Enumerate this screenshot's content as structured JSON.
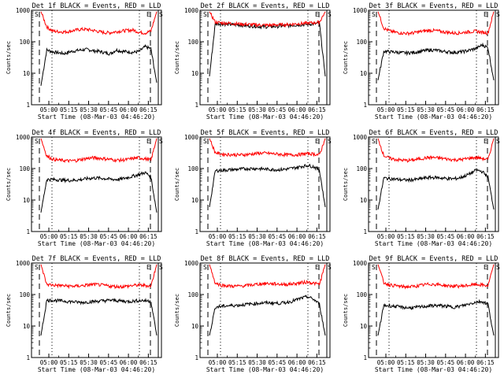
{
  "colors": {
    "events": "#000000",
    "lld": "#ff0000",
    "background": "#ffffff"
  },
  "chart_data": [
    {
      "type": "line",
      "title": "Det 1f BLACK = Events, RED = LLD",
      "xlabel": "Start Time (08-Mar-03 04:46:20)",
      "ylabel": "Counts/sec",
      "y_scale": "log",
      "ylim": [
        1,
        1000
      ],
      "yticks": [
        "1",
        "10",
        "100",
        "1000"
      ],
      "xticks": [
        "05:00",
        "05:15",
        "05:30",
        "05:45",
        "06:00",
        "06:15"
      ],
      "marker_labels": [
        "S",
        "E",
        "S"
      ],
      "series": [
        {
          "color": "#000000",
          "values": [
            4,
            55,
            48,
            45,
            42,
            48,
            52,
            55,
            57,
            52,
            50,
            45,
            42,
            55,
            50,
            48,
            46,
            50,
            70,
            60,
            5
          ]
        },
        {
          "color": "#ff0000",
          "values": [
            900,
            300,
            220,
            210,
            205,
            215,
            235,
            250,
            245,
            230,
            210,
            195,
            195,
            210,
            220,
            230,
            235,
            200,
            190,
            220,
            900
          ]
        }
      ]
    },
    {
      "type": "line",
      "title": "Det 2f BLACK = Events, RED = LLD",
      "xlabel": "Start Time (08-Mar-03 04:46:20)",
      "ylabel": "Counts/sec",
      "y_scale": "log",
      "ylim": [
        1,
        1000
      ],
      "yticks": [
        "1",
        "10",
        "100",
        "1000"
      ],
      "xticks": [
        "05:00",
        "05:15",
        "05:30",
        "05:45",
        "06:00",
        "06:15"
      ],
      "marker_labels": [
        "S",
        "E",
        "S"
      ],
      "series": [
        {
          "color": "#000000",
          "values": [
            8,
            380,
            370,
            360,
            350,
            340,
            330,
            320,
            310,
            300,
            300,
            305,
            310,
            320,
            330,
            340,
            350,
            360,
            370,
            380,
            8
          ]
        },
        {
          "color": "#ff0000",
          "values": [
            900,
            420,
            400,
            390,
            380,
            370,
            360,
            350,
            345,
            340,
            335,
            340,
            345,
            350,
            360,
            370,
            380,
            390,
            400,
            420,
            900
          ]
        }
      ]
    },
    {
      "type": "line",
      "title": "Det 3f BLACK = Events, RED = LLD",
      "xlabel": "Start Time (08-Mar-03 04:46:20)",
      "ylabel": "Counts/sec",
      "y_scale": "log",
      "ylim": [
        1,
        1000
      ],
      "yticks": [
        "1",
        "10",
        "100",
        "1000"
      ],
      "xticks": [
        "05:00",
        "05:15",
        "05:30",
        "05:45",
        "06:00",
        "06:15"
      ],
      "marker_labels": [
        "S",
        "E",
        "S"
      ],
      "series": [
        {
          "color": "#000000",
          "values": [
            6,
            50,
            48,
            47,
            45,
            44,
            46,
            48,
            52,
            55,
            54,
            50,
            48,
            46,
            47,
            50,
            55,
            62,
            80,
            65,
            6
          ]
        },
        {
          "color": "#ff0000",
          "values": [
            900,
            270,
            220,
            200,
            190,
            185,
            190,
            205,
            220,
            230,
            225,
            210,
            200,
            190,
            190,
            200,
            210,
            215,
            200,
            190,
            900
          ]
        }
      ]
    },
    {
      "type": "line",
      "title": "Det 4f BLACK = Events, RED = LLD",
      "xlabel": "Start Time (08-Mar-03 04:46:20)",
      "ylabel": "Counts/sec",
      "y_scale": "log",
      "ylim": [
        1,
        1000
      ],
      "yticks": [
        "1",
        "10",
        "100",
        "1000"
      ],
      "xticks": [
        "05:00",
        "05:15",
        "05:30",
        "05:45",
        "06:00",
        "06:15"
      ],
      "marker_labels": [
        "S",
        "E",
        "S"
      ],
      "series": [
        {
          "color": "#000000",
          "values": [
            4,
            45,
            45,
            44,
            43,
            42,
            43,
            45,
            48,
            50,
            50,
            48,
            46,
            45,
            47,
            52,
            58,
            65,
            75,
            55,
            4
          ]
        },
        {
          "color": "#ff0000",
          "values": [
            900,
            250,
            200,
            185,
            180,
            175,
            180,
            195,
            210,
            220,
            215,
            205,
            195,
            185,
            185,
            195,
            210,
            220,
            205,
            185,
            900
          ]
        }
      ]
    },
    {
      "type": "line",
      "title": "Det 5f BLACK = Events, RED = LLD",
      "xlabel": "Start Time (08-Mar-03 04:46:20)",
      "ylabel": "Counts/sec",
      "y_scale": "log",
      "ylim": [
        1,
        1000
      ],
      "yticks": [
        "1",
        "10",
        "100",
        "1000"
      ],
      "xticks": [
        "05:00",
        "05:15",
        "05:30",
        "05:45",
        "06:00",
        "06:15"
      ],
      "marker_labels": [
        "S",
        "E",
        "S"
      ],
      "series": [
        {
          "color": "#000000",
          "values": [
            6,
            85,
            88,
            90,
            92,
            95,
            98,
            100,
            100,
            98,
            95,
            93,
            92,
            95,
            100,
            108,
            118,
            125,
            115,
            90,
            6
          ]
        },
        {
          "color": "#ff0000",
          "values": [
            900,
            320,
            290,
            280,
            275,
            270,
            275,
            285,
            300,
            310,
            305,
            295,
            285,
            275,
            270,
            275,
            285,
            300,
            290,
            270,
            900
          ]
        }
      ]
    },
    {
      "type": "line",
      "title": "Det 6f BLACK = Events, RED = LLD",
      "xlabel": "Start Time (08-Mar-03 04:46:20)",
      "ylabel": "Counts/sec",
      "y_scale": "log",
      "ylim": [
        1,
        1000
      ],
      "yticks": [
        "1",
        "10",
        "100",
        "1000"
      ],
      "xticks": [
        "05:00",
        "05:15",
        "05:30",
        "05:45",
        "06:00",
        "06:15"
      ],
      "marker_labels": [
        "S",
        "E",
        "S"
      ],
      "series": [
        {
          "color": "#000000",
          "values": [
            5,
            50,
            48,
            46,
            44,
            43,
            44,
            46,
            50,
            52,
            52,
            50,
            48,
            47,
            50,
            58,
            70,
            90,
            80,
            55,
            5
          ]
        },
        {
          "color": "#ff0000",
          "values": [
            900,
            260,
            210,
            195,
            185,
            180,
            185,
            200,
            215,
            225,
            220,
            210,
            200,
            190,
            190,
            200,
            215,
            225,
            210,
            190,
            900
          ]
        }
      ]
    },
    {
      "type": "line",
      "title": "Det 7f BLACK = Events, RED = LLD",
      "xlabel": "Start Time (08-Mar-03 04:46:20)",
      "ylabel": "Counts/sec",
      "y_scale": "log",
      "ylim": [
        1,
        1000
      ],
      "yticks": [
        "1",
        "10",
        "100",
        "1000"
      ],
      "xticks": [
        "05:00",
        "05:15",
        "05:30",
        "05:45",
        "06:00",
        "06:15"
      ],
      "marker_labels": [
        "S",
        "E",
        "S"
      ],
      "series": [
        {
          "color": "#000000",
          "values": [
            5,
            65,
            66,
            64,
            62,
            60,
            58,
            56,
            58,
            60,
            62,
            64,
            66,
            65,
            62,
            60,
            62,
            65,
            64,
            62,
            5
          ]
        },
        {
          "color": "#ff0000",
          "values": [
            900,
            210,
            200,
            195,
            190,
            185,
            185,
            190,
            200,
            210,
            205,
            195,
            185,
            180,
            180,
            185,
            195,
            200,
            195,
            185,
            900
          ]
        }
      ]
    },
    {
      "type": "line",
      "title": "Det 8f BLACK = Events, RED = LLD",
      "xlabel": "Start Time (08-Mar-03 04:46:20)",
      "ylabel": "Counts/sec",
      "y_scale": "log",
      "ylim": [
        1,
        1000
      ],
      "yticks": [
        "1",
        "10",
        "100",
        "1000"
      ],
      "xticks": [
        "05:00",
        "05:15",
        "05:30",
        "05:45",
        "06:00",
        "06:15"
      ],
      "marker_labels": [
        "S",
        "E",
        "S"
      ],
      "series": [
        {
          "color": "#000000",
          "values": [
            5,
            40,
            42,
            44,
            45,
            46,
            48,
            50,
            52,
            54,
            55,
            54,
            53,
            55,
            60,
            68,
            78,
            85,
            70,
            50,
            5
          ]
        },
        {
          "color": "#ff0000",
          "values": [
            900,
            230,
            200,
            190,
            185,
            185,
            190,
            200,
            210,
            220,
            225,
            220,
            215,
            210,
            215,
            225,
            240,
            250,
            230,
            210,
            900
          ]
        }
      ]
    },
    {
      "type": "line",
      "title": "Det 9f BLACK = Events, RED = LLD",
      "xlabel": "Start Time (08-Mar-03 04:46:20)",
      "ylabel": "Counts/sec",
      "y_scale": "log",
      "ylim": [
        1,
        1000
      ],
      "yticks": [
        "1",
        "10",
        "100",
        "1000"
      ],
      "xticks": [
        "05:00",
        "05:15",
        "05:30",
        "05:45",
        "06:00",
        "06:15"
      ],
      "marker_labels": [
        "S",
        "E",
        "S"
      ],
      "series": [
        {
          "color": "#000000",
          "values": [
            5,
            45,
            44,
            42,
            40,
            38,
            38,
            40,
            42,
            44,
            45,
            44,
            42,
            40,
            42,
            46,
            52,
            58,
            60,
            50,
            5
          ]
        },
        {
          "color": "#ff0000",
          "values": [
            900,
            240,
            205,
            190,
            180,
            175,
            180,
            190,
            205,
            215,
            210,
            200,
            190,
            185,
            185,
            190,
            200,
            210,
            200,
            190,
            900
          ]
        }
      ]
    }
  ]
}
